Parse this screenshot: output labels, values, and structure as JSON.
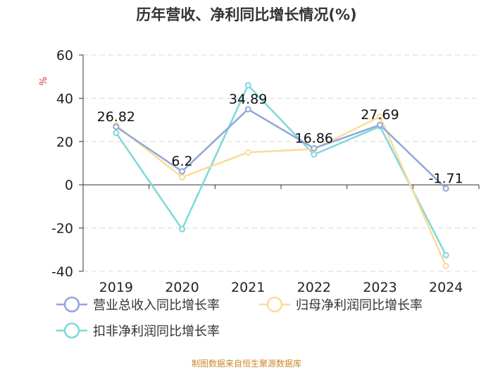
{
  "chart_data": {
    "type": "line",
    "title": "历年营收、净利同比增长情况(%)",
    "ylabel": "%",
    "categories": [
      "2019",
      "2020",
      "2021",
      "2022",
      "2023",
      "2024"
    ],
    "ylim": [
      -40,
      60
    ],
    "yticks": [
      60,
      40,
      20,
      0,
      -20,
      -40
    ],
    "grid": true,
    "series": [
      {
        "name": "营业总收入同比增长率",
        "color": "#8fa8d8",
        "values": [
          26.82,
          6.2,
          34.89,
          16.86,
          27.69,
          -1.71
        ],
        "labeled": true
      },
      {
        "name": "归母净利润同比增长率",
        "color": "#fbdb9a",
        "values": [
          27.5,
          3.5,
          15.0,
          16.5,
          31.5,
          -37.5
        ],
        "labeled": false
      },
      {
        "name": "扣非净利润同比增长率",
        "color": "#7fd8d8",
        "values": [
          24.0,
          -20.5,
          46.0,
          14.0,
          27.0,
          -32.5
        ],
        "labeled": false
      }
    ],
    "data_labels": [
      "26.82",
      "6.2",
      "34.89",
      "16.86",
      "27.69",
      "-1.71"
    ],
    "source": "制图数据来自恒生聚源数据库"
  }
}
